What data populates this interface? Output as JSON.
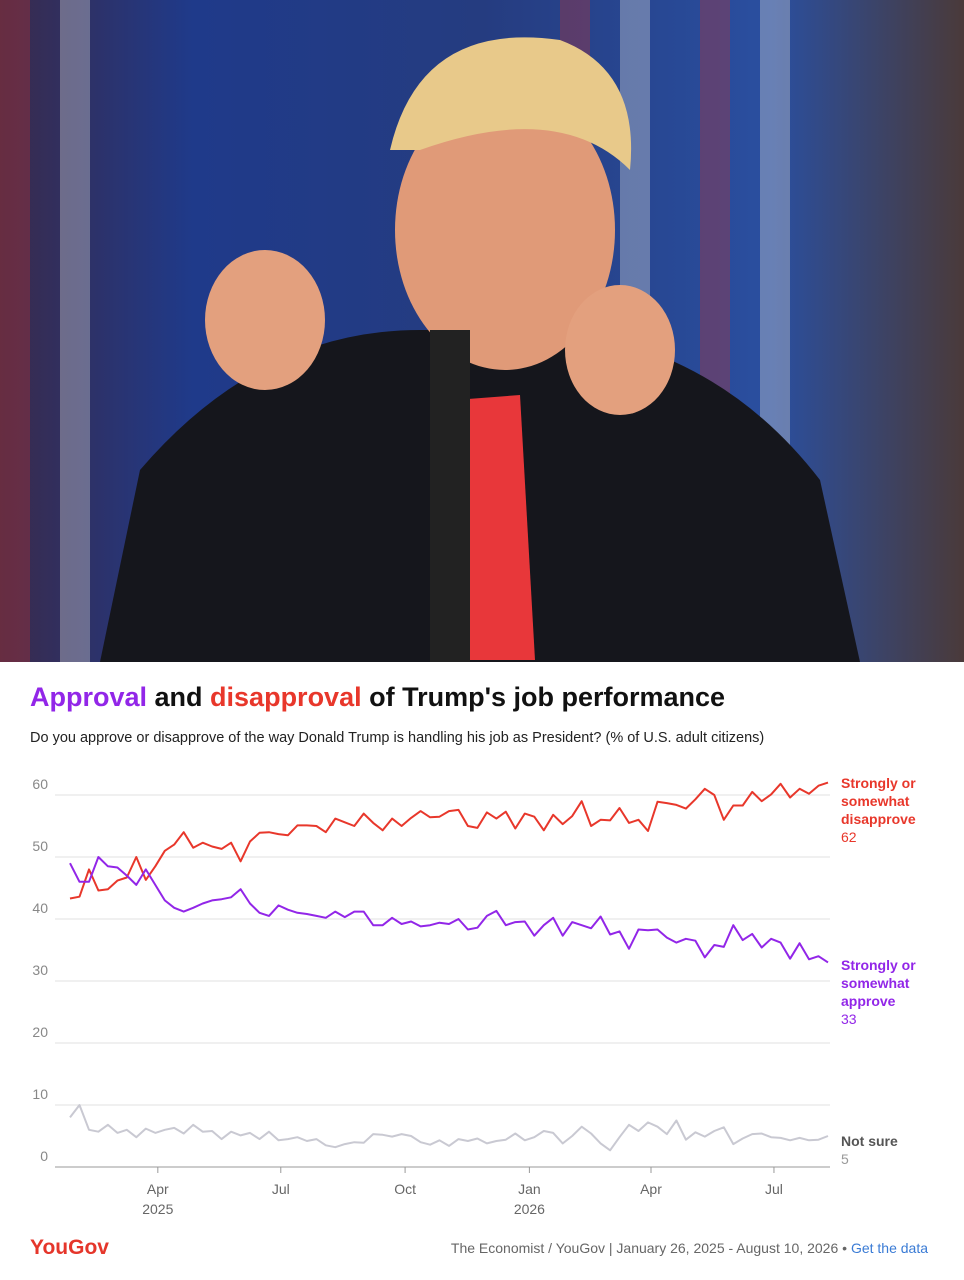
{
  "chart_data": {
    "type": "line",
    "title_parts": [
      {
        "text": "Approval",
        "color": "#9226e8"
      },
      {
        "text": " and "
      },
      {
        "text": "disapproval",
        "color": "#e8372b"
      },
      {
        "text": " of Trump's job performance"
      }
    ],
    "subtitle": "Do you approve or disapprove of the way Donald Trump is handling his job as President? (% of U.S. adult citizens)",
    "xlim": [
      "2025-01-26",
      "2026-08-10"
    ],
    "xticks": [
      {
        "value": "2025-04",
        "label": "Apr",
        "sublabel": "2025"
      },
      {
        "value": "2025-07",
        "label": "Jul"
      },
      {
        "value": "2025-10",
        "label": "Oct"
      },
      {
        "value": "2026-01",
        "label": "Jan",
        "sublabel": "2026"
      },
      {
        "value": "2026-04",
        "label": "Apr"
      },
      {
        "value": "2026-07",
        "label": "Jul"
      }
    ],
    "ylim": [
      0,
      60
    ],
    "yticks": [
      0,
      10,
      20,
      30,
      40,
      50,
      60
    ],
    "grid": true,
    "series": [
      {
        "name": "Strongly or somewhat disapprove",
        "color": "#e8372b",
        "values": [
          43.3,
          43.6,
          48,
          44.6,
          44.8,
          46.2,
          46.7,
          50,
          46.3,
          48.5,
          51,
          52,
          54,
          51.5,
          52.3,
          51.7,
          51.3,
          52.3,
          49.3,
          52.5,
          53.9,
          54,
          53.7,
          53.5,
          55.1,
          55.1,
          55,
          54,
          56.2,
          55.6,
          55,
          57,
          55.5,
          54.3,
          56.2,
          55,
          56.3,
          57.4,
          56.4,
          56.5,
          57.4,
          57.6,
          55,
          54.7,
          57.2,
          56.2,
          57.3,
          54.6,
          57,
          56.5,
          54.3,
          56.8,
          55.3,
          56.6,
          59,
          55,
          56,
          55.9,
          57.9,
          55.5,
          56,
          54.2,
          58.9,
          58.7,
          58.4,
          57.8,
          59.3,
          61,
          60,
          56,
          58.3,
          58.3,
          60.5,
          59,
          60.1,
          61.8,
          59.6,
          61,
          60.2,
          61.5,
          62
        ]
      },
      {
        "name": "Strongly or somewhat approve",
        "color": "#9226e8",
        "values": [
          49,
          46,
          46,
          50,
          48.5,
          48.3,
          47,
          45.5,
          48,
          45.5,
          43,
          41.8,
          41.2,
          41.8,
          42.5,
          43,
          43.2,
          43.5,
          44.8,
          42.5,
          41,
          40.5,
          42.2,
          41.5,
          41,
          40.8,
          40.5,
          40.2,
          41.2,
          40.3,
          41.2,
          41.2,
          39,
          39,
          40.2,
          39.2,
          39.6,
          38.8,
          39,
          39.4,
          39.2,
          40,
          38.3,
          38.6,
          40.5,
          41.3,
          39,
          39.5,
          39.6,
          37.3,
          39,
          40.2,
          37.3,
          39.5,
          39,
          38.5,
          40.4,
          37.5,
          38,
          35.2,
          38.3,
          38.2,
          38.3,
          37,
          36.2,
          36.8,
          36.5,
          33.8,
          35.8,
          35.5,
          39,
          36.6,
          37.6,
          35.4,
          36.8,
          36.2,
          33.6,
          36.1,
          33.5,
          34,
          33
        ]
      },
      {
        "name": "Not sure",
        "color": "#c9c9d2",
        "label_color": "#555555",
        "values": [
          8,
          10,
          6,
          5.7,
          6.8,
          5.5,
          6,
          4.8,
          6.2,
          5.5,
          6,
          6.3,
          5.4,
          6.8,
          5.7,
          5.8,
          4.5,
          5.7,
          5.1,
          5.5,
          4.5,
          5.7,
          4.3,
          4.5,
          4.8,
          4.2,
          4.5,
          3.5,
          3.2,
          3.7,
          4,
          3.9,
          5.3,
          5.2,
          4.9,
          5.3,
          5,
          4,
          3.6,
          4.3,
          3.4,
          4.5,
          4.2,
          4.6,
          3.8,
          4.2,
          4.4,
          5.4,
          4.3,
          4.8,
          5.8,
          5.5,
          3.8,
          5,
          6.5,
          5.4,
          3.8,
          2.7,
          4.8,
          6.8,
          5.8,
          7.2,
          6.5,
          5.3,
          7.5,
          4.4,
          5.6,
          4.9,
          5.8,
          6.4,
          3.7,
          4.6,
          5.3,
          5.4,
          4.8,
          4.7,
          4.3,
          4.7,
          4.3,
          4.4,
          5
        ]
      }
    ],
    "brand": "YouGov",
    "source": "The Economist / YouGov | January 26, 2025 - August 10, 2026",
    "separator": "•",
    "link": "Get the data"
  }
}
